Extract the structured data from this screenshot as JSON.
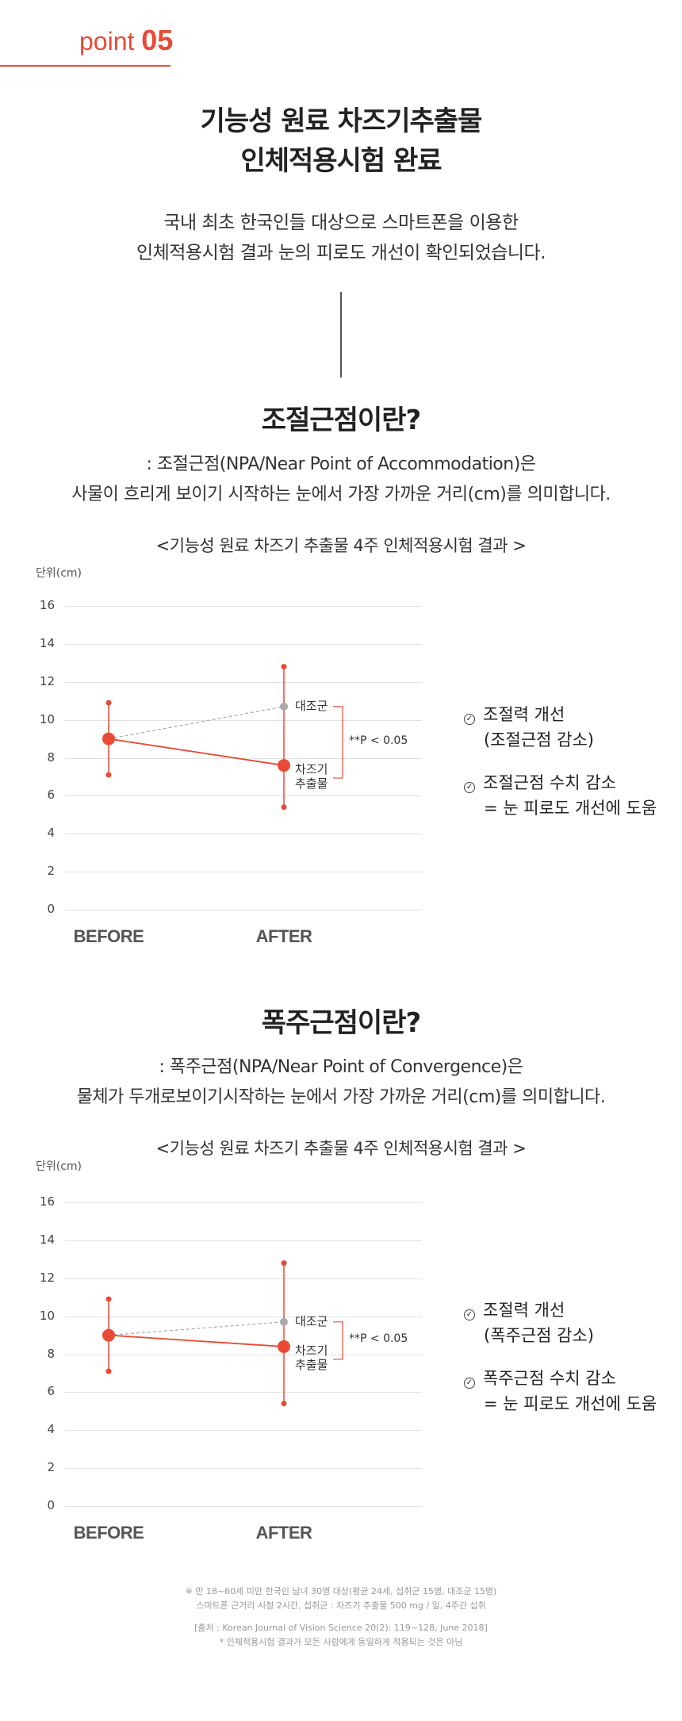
{
  "header": {
    "point_word": "point",
    "point_num": "05"
  },
  "intro": {
    "title_line1": "기능성 원료 차즈기추출물",
    "title_line2": "인체적용시험 완료",
    "desc_line1": "국내 최초 한국인들 대상으로 스마트폰을 이용한",
    "desc_line2": "인체적용시험 결과 눈의 피로도 개선이 확인되었습니다."
  },
  "section1": {
    "title": "조절근점이란?",
    "desc_line1": ": 조절근점(NPA/Near Point of Accommodation)은",
    "desc_line2": "사물이 흐리게 보이기 시작하는 눈에서 가장 가까운 거리(cm)를 의미합니다.",
    "caption": "<기능성 원료 차즈기 추출물 4주 인체적용시험 결과 >",
    "unit": "단위(cm)",
    "legend": [
      {
        "line1": "조절력 개선",
        "line2": "(조절근점 감소)"
      },
      {
        "line1": "조절근점 수치 감소",
        "line2": "= 눈 피로도 개선에 도움"
      }
    ]
  },
  "section2": {
    "title": "폭주근점이란?",
    "desc_line1": ": 폭주근점(NPA/Near Point of Convergence)은",
    "desc_line2": "물체가 두개로보이기시작하는 눈에서 가장 가까운 거리(cm)를 의미합니다.",
    "caption": "<기능성 원료 차즈기 추출물 4주 인체적용시험 결과 >",
    "unit": "단위(cm)",
    "legend": [
      {
        "line1": "조절력 개선",
        "line2": "(폭주근점 감소)"
      },
      {
        "line1": "폭주근점 수치 감소",
        "line2": "= 눈 피로도 개선에 도움"
      }
    ]
  },
  "chart_data": [
    {
      "type": "line",
      "categories": [
        "BEFORE",
        "AFTER"
      ],
      "ylim": [
        0,
        16
      ],
      "yticks": [
        0,
        2,
        4,
        6,
        8,
        10,
        12,
        14,
        16
      ],
      "ylabel": "단위(cm)",
      "grid": true,
      "series": [
        {
          "name": "대조군",
          "values": [
            9.0,
            10.7
          ],
          "color": "#aaaaaa",
          "style": "dashed"
        },
        {
          "name": "차즈기 추출물",
          "name_line1": "차즈기",
          "name_line2": "추출물",
          "values": [
            9.0,
            7.6
          ],
          "color": "#e84a36",
          "style": "solid",
          "error": [
            [
              7.1,
              10.9
            ],
            [
              5.4,
              12.8
            ]
          ]
        }
      ],
      "annotation": "**P < 0.05"
    },
    {
      "type": "line",
      "categories": [
        "BEFORE",
        "AFTER"
      ],
      "ylim": [
        0,
        16
      ],
      "yticks": [
        0,
        2,
        4,
        6,
        8,
        10,
        12,
        14,
        16
      ],
      "ylabel": "단위(cm)",
      "grid": true,
      "series": [
        {
          "name": "대조군",
          "values": [
            9.0,
            9.7
          ],
          "color": "#aaaaaa",
          "style": "dashed"
        },
        {
          "name": "차즈기 추출물",
          "name_line1": "차즈기",
          "name_line2": "추출물",
          "values": [
            9.0,
            8.4
          ],
          "color": "#e84a36",
          "style": "solid",
          "error": [
            [
              7.1,
              10.9
            ],
            [
              5.4,
              12.8
            ]
          ]
        }
      ],
      "annotation": "**P < 0.05"
    }
  ],
  "footnotes": {
    "line1": "※ 만 18~60세 미만 한국인 남녀 30명 대상(평균 24세, 섭취군 15명, 대조군 15명)",
    "line2": "스마트폰 근거리 시청 2시간, 섭취군 : 차즈기 추출물 500 mg / 일, 4주간 섭취",
    "line3": "[출처 : Korean Journal of Vision Science 20(2): 119~128, June 2018]",
    "line4": "* 인체적용시험 결과가 모든 사람에게 동일하게 적용되는 것은 아님"
  }
}
